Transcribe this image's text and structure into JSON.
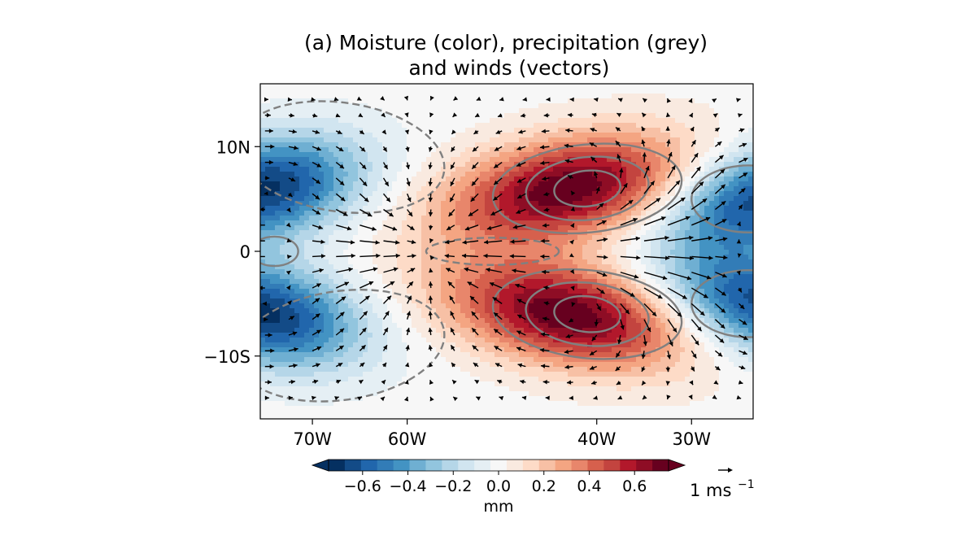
{
  "chart_data": {
    "type": "heatmap",
    "title_lines": [
      "(a) Moisture (color), precipitation (grey)",
      "and winds (vectors)"
    ],
    "xlim": [
      -75.5,
      -23.5
    ],
    "ylim": [
      -16,
      16
    ],
    "x_ticks": [
      {
        "value": -70,
        "label": "70W"
      },
      {
        "value": -60,
        "label": "60W"
      },
      {
        "value": -40,
        "label": "40W"
      },
      {
        "value": -30,
        "label": "30W"
      }
    ],
    "y_ticks": [
      {
        "value": 10,
        "label": "10N"
      },
      {
        "value": 0,
        "label": "0"
      },
      {
        "value": -10,
        "label": "−10S"
      }
    ],
    "field": {
      "description_units": "mm",
      "anomalies": [
        {
          "lon": -43,
          "lat": 6,
          "amp": 0.75
        },
        {
          "lon": -43,
          "lat": -6,
          "amp": 0.75
        },
        {
          "lon": -75,
          "lat": 6,
          "amp": -0.7
        },
        {
          "lon": -75,
          "lat": -6,
          "amp": -0.7
        },
        {
          "lon": -23,
          "lat": 5,
          "amp": -0.65
        },
        {
          "lon": -23,
          "lat": -5,
          "amp": -0.65
        }
      ]
    },
    "colorbar": {
      "label": "mm",
      "range": [
        -0.75,
        0.75
      ],
      "ticks": [
        {
          "value": -0.6,
          "label": "−0.6"
        },
        {
          "value": -0.4,
          "label": "−0.4"
        },
        {
          "value": -0.2,
          "label": "−0.2"
        },
        {
          "value": 0.0,
          "label": "0.0"
        },
        {
          "value": 0.2,
          "label": "0.2"
        },
        {
          "value": 0.4,
          "label": "0.4"
        },
        {
          "value": 0.6,
          "label": "0.6"
        }
      ],
      "colors": [
        "#053061",
        "#134b87",
        "#2166ac",
        "#327cb7",
        "#4393c3",
        "#6fafd2",
        "#92c5de",
        "#b5d6e8",
        "#d1e5f0",
        "#e5eff4",
        "#f7f7f7",
        "#f9eae0",
        "#fddbc7",
        "#f7c0a5",
        "#f4a582",
        "#e8866b",
        "#d6604d",
        "#c3443f",
        "#b2182b",
        "#8e0d25",
        "#67001f"
      ]
    },
    "precip_contours": {
      "color": "#808080",
      "positive": "solid",
      "negative": "dashed"
    },
    "wind_key": {
      "label": "1 ms",
      "exponent": "−1"
    }
  }
}
